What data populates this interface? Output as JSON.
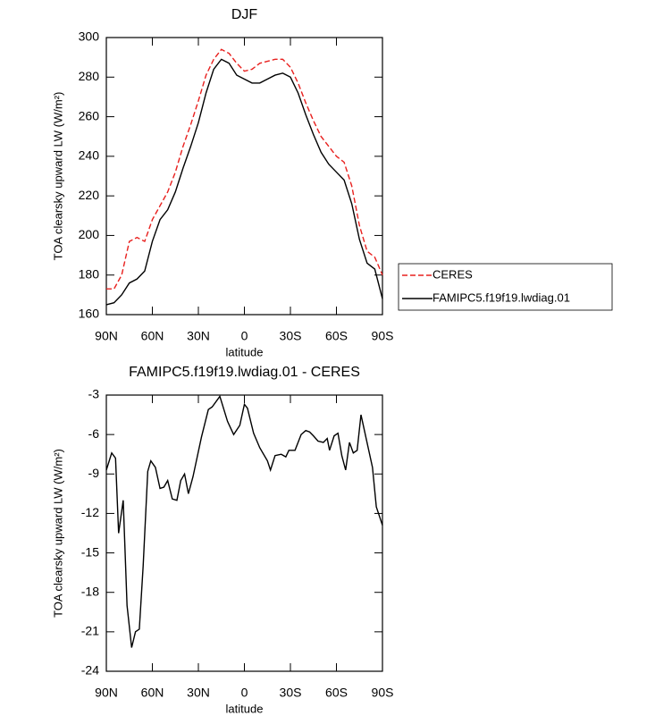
{
  "chart_data": [
    {
      "type": "line",
      "title": "DJF",
      "x_label": "latitude",
      "y_label": "TOA clearsky upward LW (W/m²)",
      "x": [
        90,
        85,
        80,
        75,
        70,
        65,
        60,
        55,
        50,
        45,
        40,
        35,
        30,
        25,
        20,
        15,
        10,
        5,
        0,
        -5,
        -10,
        -15,
        -20,
        -25,
        -30,
        -35,
        -40,
        -45,
        -50,
        -55,
        -60,
        -65,
        -70,
        -75,
        -80,
        -85,
        -90
      ],
      "series": [
        {
          "name": "CERES",
          "color": "#e8201e",
          "line_style": "dashed",
          "values": [
            173,
            173,
            180,
            197,
            199,
            197,
            208,
            215,
            222,
            232,
            245,
            256,
            268,
            281,
            289,
            294,
            292,
            287,
            283,
            284,
            287,
            288,
            289,
            289,
            285,
            277,
            267,
            258,
            250,
            245,
            240,
            237,
            225,
            205,
            192,
            189,
            180
          ]
        },
        {
          "name": "FAMIPC5.f19f19.lwdiag.01",
          "color": "#000000",
          "line_style": "solid",
          "values": [
            165,
            166,
            170,
            176,
            178,
            182,
            197,
            208,
            213,
            222,
            234,
            245,
            257,
            272,
            284,
            289,
            287,
            281,
            279,
            277,
            277,
            279,
            281,
            282,
            280,
            272,
            261,
            251,
            242,
            236,
            232,
            228,
            216,
            198,
            186,
            183,
            168
          ]
        }
      ],
      "xlim": [
        90,
        -90
      ],
      "xticks": [
        {
          "value": 90,
          "label": "90N"
        },
        {
          "value": 60,
          "label": "60N"
        },
        {
          "value": 30,
          "label": "30N"
        },
        0,
        {
          "value": -30,
          "label": "30S"
        },
        {
          "value": -60,
          "label": "60S"
        },
        {
          "value": -90,
          "label": "90S"
        }
      ],
      "ylim": [
        160,
        300
      ],
      "yticks": [
        160,
        180,
        200,
        220,
        240,
        260,
        280,
        300
      ],
      "legend": "outside-right"
    },
    {
      "type": "line",
      "title": "FAMIPC5.f19f19.lwdiag.01 - CERES",
      "x_label": "latitude",
      "y_label": "TOA clearsky upward LW (W/m²)",
      "x": [
        90,
        86.5,
        84,
        82,
        79,
        76.5,
        73.5,
        71,
        68.5,
        66,
        63,
        61,
        58,
        55,
        52.5,
        50,
        47,
        44,
        41.5,
        39,
        36.5,
        33.5,
        28,
        23.5,
        21,
        16,
        11,
        7,
        3,
        0,
        -2,
        -6,
        -10,
        -15,
        -17,
        -20,
        -24,
        -27,
        -29,
        -33,
        -37,
        -40,
        -42.5,
        -45,
        -48,
        -51.5,
        -54,
        -55.5,
        -58.5,
        -61,
        -63.5,
        -66,
        -68.5,
        -71,
        -73.5,
        -76,
        -83.5,
        -86,
        -90
      ],
      "values": [
        -8.7,
        -7.4,
        -7.8,
        -13.5,
        -11.0,
        -19.0,
        -22.2,
        -21.0,
        -20.8,
        -16.0,
        -8.8,
        -8.0,
        -8.5,
        -10.1,
        -10.0,
        -9.5,
        -10.9,
        -11.0,
        -9.5,
        -9.0,
        -10.5,
        -9.2,
        -6.2,
        -4.1,
        -3.9,
        -3.1,
        -5.0,
        -6.0,
        -5.3,
        -3.7,
        -4.0,
        -5.9,
        -7.0,
        -8.0,
        -8.7,
        -7.6,
        -7.5,
        -7.7,
        -7.2,
        -7.2,
        -6.0,
        -5.7,
        -5.8,
        -6.1,
        -6.5,
        -6.6,
        -6.3,
        -7.2,
        -6.1,
        -5.9,
        -7.6,
        -8.7,
        -6.6,
        -7.4,
        -7.2,
        -4.5,
        -8.5,
        -11.5,
        -12.9
      ],
      "color": "#000000",
      "xlim": [
        90,
        -90
      ],
      "xticks": [
        {
          "value": 90,
          "label": "90N"
        },
        {
          "value": 60,
          "label": "60N"
        },
        {
          "value": 30,
          "label": "30N"
        },
        0,
        {
          "value": -30,
          "label": "30S"
        },
        {
          "value": -60,
          "label": "60S"
        },
        {
          "value": -90,
          "label": "90S"
        }
      ],
      "ylim": [
        -24,
        -3
      ],
      "yticks": [
        -24,
        -21,
        -18,
        -15,
        -12,
        -9,
        -6,
        -3
      ]
    }
  ]
}
